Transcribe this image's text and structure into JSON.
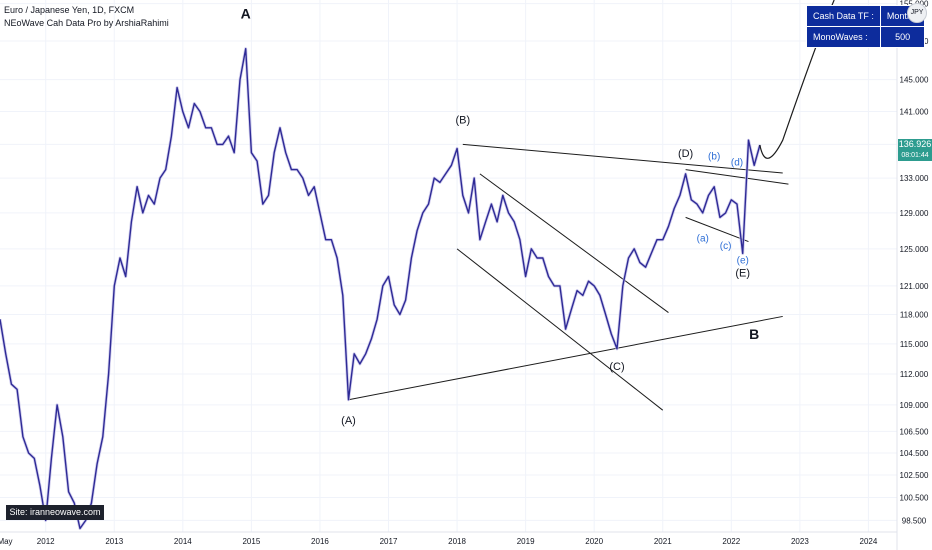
{
  "legend": {
    "symbol_line": "Euro / Japanese Yen, 1D, FXCM",
    "indicator_line": "NEoWave Cah Data Pro by ArshiaRahimi"
  },
  "info_table": {
    "rows": [
      {
        "label": "Cash Data TF :",
        "value": "Monthly"
      },
      {
        "label": "MonoWaves :",
        "value": "500"
      }
    ]
  },
  "site_box": "Site: iranneowave.com",
  "price_tag": {
    "price": "136.926",
    "countdown": "08:01:44"
  },
  "currency_icon": "JPY",
  "colors": {
    "price_line": "#2e2a96",
    "shadow_line": "#c4c0e8",
    "trend_lines": "#1c1c1c",
    "minor_labels": "#2f6fd6",
    "price_tag": "#2d9c8f",
    "info_table": "#0d2c9c"
  },
  "chart_data": {
    "type": "line",
    "title": "Euro / Japanese Yen, 1D, FXCM",
    "x_axis": {
      "labels": [
        "May",
        "2012",
        "2013",
        "2014",
        "2015",
        "2016",
        "2017",
        "2018",
        "2019",
        "2020",
        "2021",
        "2022",
        "2023",
        "2024"
      ],
      "range": [
        "2011-05",
        "2024-06"
      ]
    },
    "y_axis": {
      "labels": [
        "98.500",
        "100.500",
        "102.500",
        "104.500",
        "106.500",
        "109.000",
        "112.000",
        "115.000",
        "118.000",
        "121.000",
        "125.000",
        "129.000",
        "133.000",
        "137.000",
        "141.000",
        "145.000",
        "150.000",
        "155.000"
      ],
      "range": [
        97.5,
        155.5
      ]
    },
    "last_price": 136.926,
    "series": [
      {
        "points": [
          [
            "2011-05",
            117.5
          ],
          [
            "2011-06",
            114.0
          ],
          [
            "2011-07",
            111.0
          ],
          [
            "2011-08",
            110.5
          ],
          [
            "2011-09",
            106.0
          ],
          [
            "2011-10",
            104.5
          ],
          [
            "2011-11",
            104.0
          ],
          [
            "2011-12",
            101.5
          ],
          [
            "2012-01",
            98.5
          ],
          [
            "2012-02",
            104.0
          ],
          [
            "2012-03",
            109.0
          ],
          [
            "2012-04",
            106.0
          ],
          [
            "2012-05",
            101.0
          ],
          [
            "2012-06",
            100.0
          ],
          [
            "2012-07",
            97.8
          ],
          [
            "2012-08",
            98.5
          ],
          [
            "2012-09",
            100.0
          ],
          [
            "2012-10",
            103.5
          ],
          [
            "2012-11",
            106.0
          ],
          [
            "2012-12",
            112.0
          ],
          [
            "2013-01",
            121.0
          ],
          [
            "2013-02",
            124.0
          ],
          [
            "2013-03",
            122.0
          ],
          [
            "2013-04",
            128.0
          ],
          [
            "2013-05",
            132.0
          ],
          [
            "2013-06",
            129.0
          ],
          [
            "2013-07",
            131.0
          ],
          [
            "2013-08",
            130.0
          ],
          [
            "2013-09",
            133.0
          ],
          [
            "2013-10",
            134.0
          ],
          [
            "2013-11",
            138.0
          ],
          [
            "2013-12",
            144.0
          ],
          [
            "2014-01",
            141.0
          ],
          [
            "2014-02",
            139.0
          ],
          [
            "2014-03",
            142.0
          ],
          [
            "2014-04",
            141.0
          ],
          [
            "2014-05",
            139.0
          ],
          [
            "2014-06",
            139.0
          ],
          [
            "2014-07",
            137.0
          ],
          [
            "2014-08",
            137.0
          ],
          [
            "2014-09",
            138.0
          ],
          [
            "2014-10",
            136.0
          ],
          [
            "2014-11",
            145.0
          ],
          [
            "2014-12",
            149.0
          ],
          [
            "2015-01",
            136.0
          ],
          [
            "2015-02",
            135.0
          ],
          [
            "2015-03",
            130.0
          ],
          [
            "2015-04",
            131.0
          ],
          [
            "2015-05",
            136.0
          ],
          [
            "2015-06",
            139.0
          ],
          [
            "2015-07",
            136.0
          ],
          [
            "2015-08",
            134.0
          ],
          [
            "2015-09",
            134.0
          ],
          [
            "2015-10",
            133.0
          ],
          [
            "2015-11",
            131.0
          ],
          [
            "2015-12",
            132.0
          ],
          [
            "2016-01",
            129.0
          ],
          [
            "2016-02",
            126.0
          ],
          [
            "2016-03",
            126.0
          ],
          [
            "2016-04",
            124.0
          ],
          [
            "2016-05",
            120.0
          ],
          [
            "2016-06",
            109.5
          ],
          [
            "2016-07",
            114.0
          ],
          [
            "2016-08",
            113.0
          ],
          [
            "2016-09",
            114.0
          ],
          [
            "2016-10",
            115.5
          ],
          [
            "2016-11",
            117.5
          ],
          [
            "2016-12",
            121.0
          ],
          [
            "2017-01",
            122.0
          ],
          [
            "2017-02",
            119.0
          ],
          [
            "2017-03",
            118.0
          ],
          [
            "2017-04",
            119.5
          ],
          [
            "2017-05",
            124.0
          ],
          [
            "2017-06",
            127.0
          ],
          [
            "2017-07",
            129.0
          ],
          [
            "2017-08",
            130.0
          ],
          [
            "2017-09",
            133.0
          ],
          [
            "2017-10",
            132.5
          ],
          [
            "2017-11",
            133.5
          ],
          [
            "2017-12",
            134.5
          ],
          [
            "2018-01",
            136.5
          ],
          [
            "2018-02",
            131.0
          ],
          [
            "2018-03",
            129.0
          ],
          [
            "2018-04",
            133.0
          ],
          [
            "2018-05",
            126.0
          ],
          [
            "2018-06",
            128.0
          ],
          [
            "2018-07",
            130.0
          ],
          [
            "2018-08",
            128.0
          ],
          [
            "2018-09",
            131.0
          ],
          [
            "2018-10",
            129.0
          ],
          [
            "2018-11",
            128.0
          ],
          [
            "2018-12",
            126.0
          ],
          [
            "2019-01",
            122.0
          ],
          [
            "2019-02",
            125.0
          ],
          [
            "2019-03",
            124.0
          ],
          [
            "2019-04",
            124.0
          ],
          [
            "2019-05",
            122.0
          ],
          [
            "2019-06",
            121.0
          ],
          [
            "2019-07",
            121.0
          ],
          [
            "2019-08",
            116.5
          ],
          [
            "2019-09",
            118.5
          ],
          [
            "2019-10",
            120.5
          ],
          [
            "2019-11",
            120.0
          ],
          [
            "2019-12",
            121.5
          ],
          [
            "2020-01",
            121.0
          ],
          [
            "2020-02",
            120.0
          ],
          [
            "2020-03",
            118.0
          ],
          [
            "2020-04",
            116.0
          ],
          [
            "2020-05",
            114.5
          ],
          [
            "2020-06",
            121.0
          ],
          [
            "2020-07",
            124.0
          ],
          [
            "2020-08",
            125.0
          ],
          [
            "2020-09",
            123.5
          ],
          [
            "2020-10",
            123.0
          ],
          [
            "2020-11",
            124.5
          ],
          [
            "2020-12",
            126.0
          ],
          [
            "2021-01",
            126.0
          ],
          [
            "2021-02",
            127.5
          ],
          [
            "2021-03",
            129.5
          ],
          [
            "2021-04",
            131.0
          ],
          [
            "2021-05",
            133.5
          ],
          [
            "2021-06",
            130.5
          ],
          [
            "2021-07",
            130.0
          ],
          [
            "2021-08",
            129.0
          ],
          [
            "2021-09",
            131.0
          ],
          [
            "2021-10",
            132.0
          ],
          [
            "2021-11",
            128.5
          ],
          [
            "2021-12",
            129.0
          ],
          [
            "2022-01",
            130.5
          ],
          [
            "2022-02",
            130.0
          ],
          [
            "2022-03",
            124.5
          ],
          [
            "2022-04",
            137.5
          ],
          [
            "2022-05",
            134.5
          ],
          [
            "2022-06",
            136.926
          ]
        ]
      }
    ],
    "projection": {
      "points": [
        [
          "2022-06",
          136.926
        ],
        [
          "2022-07",
          133.5
        ],
        [
          "2022-10",
          137.5
        ],
        [
          "2023-04",
          150.0
        ],
        [
          "2023-07",
          155.5
        ]
      ]
    },
    "trendlines": [
      {
        "from": [
          "2018-02",
          137.0
        ],
        "to": [
          "2022-10",
          133.6
        ]
      },
      {
        "from": [
          "2021-05",
          134.0
        ],
        "to": [
          "2022-11",
          132.3
        ]
      },
      {
        "from": [
          "2016-06",
          109.5
        ],
        "to": [
          "2022-10",
          117.8
        ]
      },
      {
        "from": [
          "2018-05",
          133.5
        ],
        "to": [
          "2021-02",
          118.2
        ]
      },
      {
        "from": [
          "2018-01",
          125.0
        ],
        "to": [
          "2021-01",
          108.5
        ]
      },
      {
        "from": [
          "2021-05",
          128.5
        ],
        "to": [
          "2022-04",
          125.8
        ]
      }
    ],
    "wave_labels": [
      {
        "text": "A",
        "at": [
          "2014-12",
          153.0
        ],
        "style": "major"
      },
      {
        "text": "B",
        "at": [
          "2022-05",
          115.5
        ],
        "style": "major"
      },
      {
        "text": "(A)",
        "at": [
          "2016-06",
          107.2
        ],
        "style": "corrective"
      },
      {
        "text": "(B)",
        "at": [
          "2018-02",
          139.5
        ],
        "style": "corrective"
      },
      {
        "text": "(C)",
        "at": [
          "2020-05",
          112.4
        ],
        "style": "corrective"
      },
      {
        "text": "(D)",
        "at": [
          "2021-05",
          135.5
        ],
        "style": "corrective"
      },
      {
        "text": "(E)",
        "at": [
          "2022-03",
          122.0
        ],
        "style": "corrective"
      },
      {
        "text": "(a)",
        "at": [
          "2021-08",
          125.8
        ],
        "style": "minor"
      },
      {
        "text": "(b)",
        "at": [
          "2021-10",
          135.2
        ],
        "style": "minor"
      },
      {
        "text": "(c)",
        "at": [
          "2021-12",
          125.0
        ],
        "style": "minor"
      },
      {
        "text": "(d)",
        "at": [
          "2022-02",
          134.5
        ],
        "style": "minor"
      },
      {
        "text": "(e)",
        "at": [
          "2022-03",
          123.4
        ],
        "style": "minor"
      }
    ],
    "grid": true,
    "legend": "none"
  }
}
